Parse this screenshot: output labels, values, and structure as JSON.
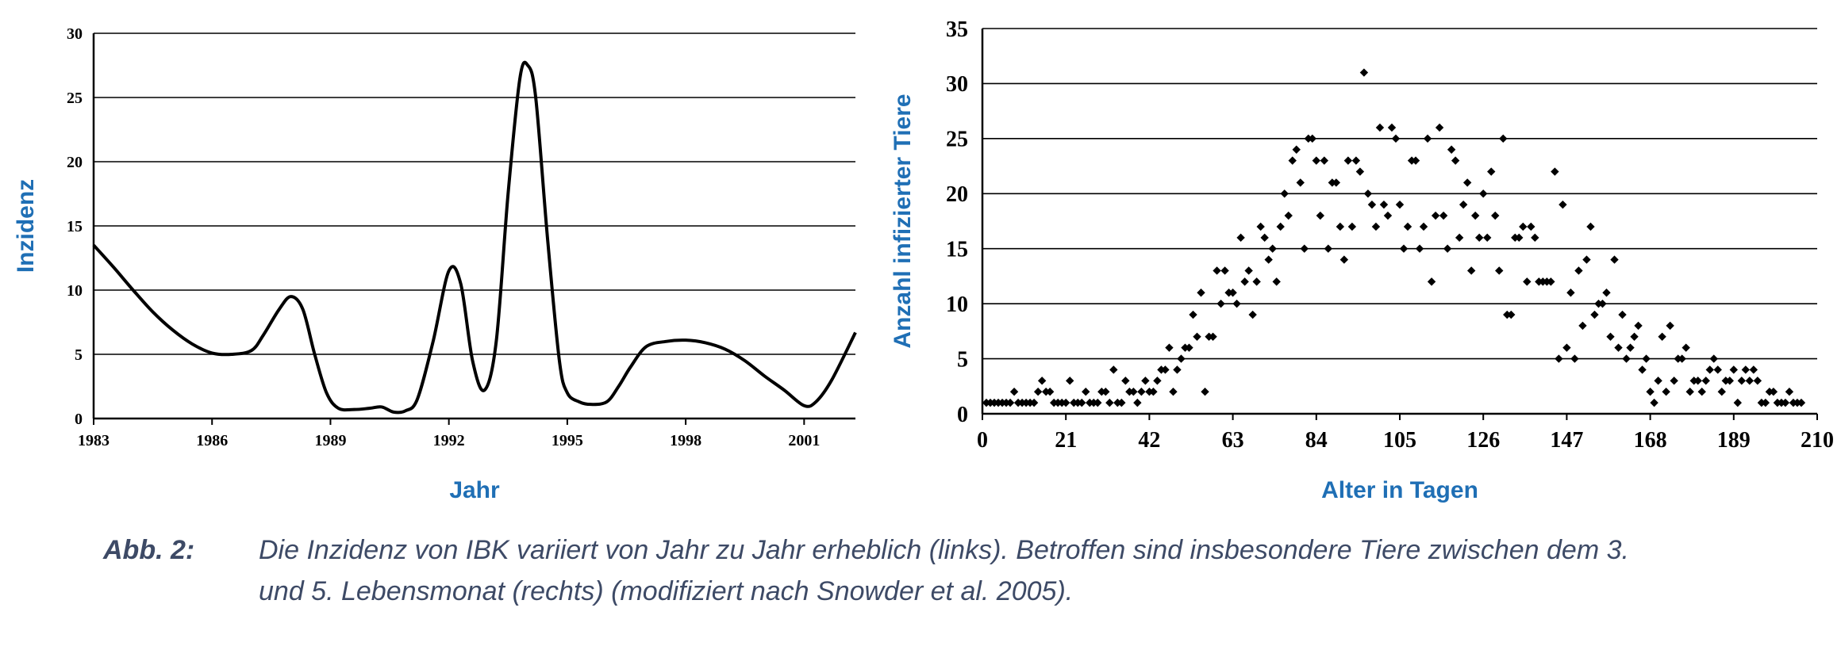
{
  "chart_data": [
    {
      "type": "line",
      "xlabel": "Jahr",
      "ylabel": "Inzidenz",
      "xlim": [
        1983,
        2002.3
      ],
      "ylim": [
        0,
        30
      ],
      "x_ticks": [
        "1983",
        "1986",
        "1989",
        "1992",
        "1995",
        "1998",
        "2001"
      ],
      "y_ticks": [
        "0",
        "5",
        "10",
        "15",
        "20",
        "25",
        "30"
      ],
      "grid": "horizontal",
      "series": [
        {
          "x": [
            1983,
            1983.5,
            1984,
            1984.5,
            1985,
            1985.5,
            1986,
            1986.5,
            1987,
            1987.3,
            1987.7,
            1988,
            1988.3,
            1988.6,
            1988.9,
            1989.2,
            1989.6,
            1990,
            1990.3,
            1990.6,
            1990.9,
            1991.2,
            1991.6,
            1992,
            1992.3,
            1992.6,
            1992.9,
            1993.2,
            1993.5,
            1993.8,
            1994,
            1994.2,
            1994.5,
            1994.8,
            1995,
            1995.3,
            1995.6,
            1996,
            1996.3,
            1996.6,
            1997,
            1997.5,
            1998,
            1998.5,
            1999,
            1999.5,
            2000,
            2000.5,
            2001,
            2001.3,
            2001.7,
            2002.3
          ],
          "y": [
            13.5,
            11.8,
            10.0,
            8.3,
            6.9,
            5.8,
            5.1,
            5.0,
            5.3,
            6.5,
            8.5,
            9.5,
            8.5,
            5.0,
            2.0,
            0.8,
            0.7,
            0.8,
            0.9,
            0.5,
            0.6,
            1.5,
            6.0,
            11.5,
            10.5,
            4.5,
            2.2,
            6.0,
            17.5,
            26.5,
            27.5,
            25.0,
            14.0,
            4.5,
            2.0,
            1.3,
            1.1,
            1.3,
            2.5,
            4.0,
            5.6,
            6.0,
            6.1,
            5.9,
            5.4,
            4.5,
            3.3,
            2.2,
            1.0,
            1.3,
            3.0,
            6.7
          ]
        }
      ]
    },
    {
      "type": "scatter",
      "xlabel": "Alter in Tagen",
      "ylabel": "Anzahl infizierter Tiere",
      "xlim": [
        0,
        210
      ],
      "ylim": [
        0,
        35
      ],
      "x_ticks": [
        "0",
        "21",
        "42",
        "63",
        "84",
        "105",
        "126",
        "147",
        "168",
        "189",
        "210"
      ],
      "y_ticks": [
        "0",
        "5",
        "10",
        "15",
        "20",
        "25",
        "30",
        "35"
      ],
      "grid": "horizontal",
      "series": [
        {
          "points": [
            [
              1,
              1
            ],
            [
              2,
              1
            ],
            [
              3,
              1
            ],
            [
              4,
              1
            ],
            [
              5,
              1
            ],
            [
              6,
              1
            ],
            [
              7,
              1
            ],
            [
              8,
              2
            ],
            [
              9,
              1
            ],
            [
              10,
              1
            ],
            [
              11,
              1
            ],
            [
              12,
              1
            ],
            [
              13,
              1
            ],
            [
              14,
              2
            ],
            [
              15,
              3
            ],
            [
              16,
              2
            ],
            [
              17,
              2
            ],
            [
              18,
              1
            ],
            [
              19,
              1
            ],
            [
              20,
              1
            ],
            [
              21,
              1
            ],
            [
              22,
              3
            ],
            [
              23,
              1
            ],
            [
              24,
              1
            ],
            [
              25,
              1
            ],
            [
              26,
              2
            ],
            [
              27,
              1
            ],
            [
              28,
              1
            ],
            [
              29,
              1
            ],
            [
              30,
              2
            ],
            [
              31,
              2
            ],
            [
              32,
              1
            ],
            [
              33,
              4
            ],
            [
              34,
              1
            ],
            [
              35,
              1
            ],
            [
              36,
              3
            ],
            [
              37,
              2
            ],
            [
              38,
              2
            ],
            [
              39,
              1
            ],
            [
              40,
              2
            ],
            [
              41,
              3
            ],
            [
              42,
              2
            ],
            [
              43,
              2
            ],
            [
              44,
              3
            ],
            [
              45,
              4
            ],
            [
              46,
              4
            ],
            [
              47,
              6
            ],
            [
              48,
              2
            ],
            [
              49,
              4
            ],
            [
              50,
              5
            ],
            [
              51,
              6
            ],
            [
              52,
              6
            ],
            [
              53,
              9
            ],
            [
              54,
              7
            ],
            [
              55,
              11
            ],
            [
              56,
              2
            ],
            [
              57,
              7
            ],
            [
              58,
              7
            ],
            [
              59,
              13
            ],
            [
              60,
              10
            ],
            [
              61,
              13
            ],
            [
              62,
              11
            ],
            [
              63,
              11
            ],
            [
              64,
              10
            ],
            [
              65,
              16
            ],
            [
              66,
              12
            ],
            [
              67,
              13
            ],
            [
              68,
              9
            ],
            [
              69,
              12
            ],
            [
              70,
              17
            ],
            [
              71,
              16
            ],
            [
              72,
              14
            ],
            [
              73,
              15
            ],
            [
              74,
              12
            ],
            [
              75,
              17
            ],
            [
              76,
              20
            ],
            [
              77,
              18
            ],
            [
              78,
              23
            ],
            [
              79,
              24
            ],
            [
              80,
              21
            ],
            [
              81,
              15
            ],
            [
              82,
              25
            ],
            [
              83,
              25
            ],
            [
              84,
              23
            ],
            [
              85,
              18
            ],
            [
              86,
              23
            ],
            [
              87,
              15
            ],
            [
              88,
              21
            ],
            [
              89,
              21
            ],
            [
              90,
              17
            ],
            [
              91,
              14
            ],
            [
              92,
              23
            ],
            [
              93,
              17
            ],
            [
              94,
              23
            ],
            [
              95,
              22
            ],
            [
              96,
              31
            ],
            [
              97,
              20
            ],
            [
              98,
              19
            ],
            [
              99,
              17
            ],
            [
              100,
              26
            ],
            [
              101,
              19
            ],
            [
              102,
              18
            ],
            [
              103,
              26
            ],
            [
              104,
              25
            ],
            [
              105,
              19
            ],
            [
              106,
              15
            ],
            [
              107,
              17
            ],
            [
              108,
              23
            ],
            [
              109,
              23
            ],
            [
              110,
              15
            ],
            [
              111,
              17
            ],
            [
              112,
              25
            ],
            [
              113,
              12
            ],
            [
              114,
              18
            ],
            [
              115,
              26
            ],
            [
              116,
              18
            ],
            [
              117,
              15
            ],
            [
              118,
              24
            ],
            [
              119,
              23
            ],
            [
              120,
              16
            ],
            [
              121,
              19
            ],
            [
              122,
              21
            ],
            [
              123,
              13
            ],
            [
              124,
              18
            ],
            [
              125,
              16
            ],
            [
              126,
              20
            ],
            [
              127,
              16
            ],
            [
              128,
              22
            ],
            [
              129,
              18
            ],
            [
              130,
              13
            ],
            [
              131,
              25
            ],
            [
              132,
              9
            ],
            [
              133,
              9
            ],
            [
              134,
              16
            ],
            [
              135,
              16
            ],
            [
              136,
              17
            ],
            [
              137,
              12
            ],
            [
              138,
              17
            ],
            [
              139,
              16
            ],
            [
              140,
              12
            ],
            [
              141,
              12
            ],
            [
              142,
              12
            ],
            [
              143,
              12
            ],
            [
              144,
              22
            ],
            [
              145,
              5
            ],
            [
              146,
              19
            ],
            [
              147,
              6
            ],
            [
              148,
              11
            ],
            [
              149,
              5
            ],
            [
              150,
              13
            ],
            [
              151,
              8
            ],
            [
              152,
              14
            ],
            [
              153,
              17
            ],
            [
              154,
              9
            ],
            [
              155,
              10
            ],
            [
              156,
              10
            ],
            [
              157,
              11
            ],
            [
              158,
              7
            ],
            [
              159,
              14
            ],
            [
              160,
              6
            ],
            [
              161,
              9
            ],
            [
              162,
              5
            ],
            [
              163,
              6
            ],
            [
              164,
              7
            ],
            [
              165,
              8
            ],
            [
              166,
              4
            ],
            [
              167,
              5
            ],
            [
              168,
              2
            ],
            [
              169,
              1
            ],
            [
              170,
              3
            ],
            [
              171,
              7
            ],
            [
              172,
              2
            ],
            [
              173,
              8
            ],
            [
              174,
              3
            ],
            [
              175,
              5
            ],
            [
              176,
              5
            ],
            [
              177,
              6
            ],
            [
              178,
              2
            ],
            [
              179,
              3
            ],
            [
              180,
              3
            ],
            [
              181,
              2
            ],
            [
              182,
              3
            ],
            [
              183,
              4
            ],
            [
              184,
              5
            ],
            [
              185,
              4
            ],
            [
              186,
              2
            ],
            [
              187,
              3
            ],
            [
              188,
              3
            ],
            [
              189,
              4
            ],
            [
              190,
              1
            ],
            [
              191,
              3
            ],
            [
              192,
              4
            ],
            [
              193,
              3
            ],
            [
              194,
              4
            ],
            [
              195,
              3
            ],
            [
              196,
              1
            ],
            [
              197,
              1
            ],
            [
              198,
              2
            ],
            [
              199,
              2
            ],
            [
              200,
              1
            ],
            [
              201,
              1
            ],
            [
              202,
              1
            ],
            [
              203,
              2
            ],
            [
              204,
              1
            ],
            [
              205,
              1
            ],
            [
              206,
              1
            ]
          ]
        }
      ]
    }
  ],
  "caption": {
    "label": "Abb. 2:",
    "line1": "Die Inzidenz von IBK variiert von Jahr zu Jahr erheblich (links). Betroffen sind insbesondere Tiere zwischen dem 3.",
    "line2": "und 5. Lebensmonat (rechts) (modifiziert nach Snowder et al. 2005)."
  }
}
